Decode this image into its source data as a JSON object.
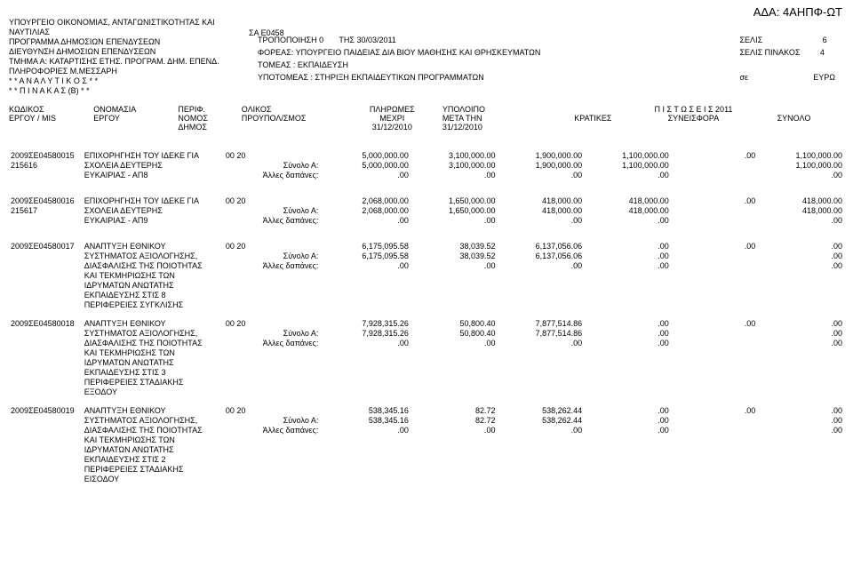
{
  "ada": "ΑΔΑ: 4ΑΗΠΦ-ΩΤ",
  "header": {
    "l1": "ΥΠΟΥΡΓΕΙΟ ΟΙΚΟΝΟΜΙΑΣ, ΑΝΤΑΓΩΝΙΣΤΙΚΟΤΗΤΑΣ ΚΑΙ ΝΑΥΤΙΛΙΑΣ",
    "l2": "ΠΡΟΓΡΑΜΜΑ ΔΗΜΟΣΙΩΝ ΕΠΕΝΔΥΣΕΩΝ",
    "l3": "ΔΙΕΥΘΥΝΣΗ ΔΗΜΟΣΙΩΝ ΕΠΕΝΔΥΣΕΩΝ",
    "l4": "ΤΜΗΜΑ  Α: ΚΑΤΑΡΤΙΣΗΣ ΕΤΗΣ. ΠΡΟΓΡΑΜ. ΔΗΜ. ΕΠΕΝΔ.",
    "l5": "ΠΛΗΡΟΦΟΡΙΕΣ  Μ.ΜΕΣΣΑΡΗ",
    "l6": "* *  Α Ν Α Λ Υ Τ Ι Κ Ο Σ  * *",
    "l7": "* *  Π Ι Ν Α Κ Α Σ  (Β)  * *",
    "sa": "ΣΑ  Ε0458",
    "tropo": "ΤΡΟΠΟΠΟΙΗΣΗ  0",
    "ths": "ΤΗΣ  30/03/2011",
    "foreas": "ΦΟΡΕΑΣ: ΥΠΟΥΡΓΕΙΟ  ΠΑΙΔΕΙΑΣ ΔΙΑ ΒΙΟΥ ΜΑΘΗΣΗΣ ΚΑΙ ΘΡΗΣΚΕΥΜΑΤΩΝ",
    "tomeas": "ΤΟΜΕΑΣ : ΕΚΠΑΙΔΕΥΣΗ",
    "ypotomeas": "ΥΠΟΤΟΜΕΑΣ :   ΣΤΗΡΙΞΗ ΕΚΠΑΙΔΕΥΤΙΚΩΝ ΠΡΟΓΡΑΜΜΑΤΩΝ",
    "selis": "ΣΕΛΙΣ",
    "selis_no": "6",
    "selis_pinakos": "ΣΕΛΙΣ ΠΙΝΑΚΟΣ",
    "selis_pinakos_no": "4",
    "se": "σε",
    "curr": "ΕΥΡΩ"
  },
  "cols": {
    "c1a": "ΚΩΔΙΚΟΣ",
    "c1b": "ΕΡΓΟΥ / MIS",
    "c2a": "ΟΝΟΜΑΣΙΑ",
    "c2b": "ΕΡΓΟΥ",
    "c3a": "ΠΕΡΙΦ.",
    "c3b": "ΝΟΜΟΣ",
    "c3c": "ΔΗΜΟΣ",
    "c4a": "ΟΛΙΚΟΣ",
    "c4b": "ΠΡΟΥΠΟΛ/ΣΜΟΣ",
    "c5a": "ΠΛΗΡΩΜΕΣ",
    "c5b": "ΜΕΧΡΙ",
    "c5c": "31/12/2010",
    "c6a": "ΥΠΟΛΟΙΠΟ",
    "c6b": "ΜΕΤΑ ΤΗΝ",
    "c6c": "31/12/2010",
    "c7": "Π Ι Σ Τ Ω Σ Ε Ι Σ   2011",
    "c7a": "ΚΡΑΤΙΚΕΣ",
    "c7b": "ΣΥΝΕΙΣΦΟΡΑ",
    "c7c": "ΣΥΝΟΛΟ"
  },
  "labels": {
    "synoloA": "Σύνολο Α:",
    "alles": "Άλλες δαπάνες:"
  },
  "rows": [
    {
      "code": "2009ΣΕ04580015",
      "mis": "215616",
      "name1": "ΕΠΙΧΟΡΗΓΗΣΗ ΤΟΥ ΙΔΕΚΕ ΓΙΑ",
      "name2": "ΣΧΟΛΕΙΑ ΔΕΥΤΕΡΗΣ",
      "name3": "ΕΥΚΑΙΡΙΑΣ - ΑΠ8",
      "name4": "",
      "name5": "",
      "name6": "",
      "name7": "",
      "name8": "",
      "perif": "00 20",
      "c4_1": "5,000,000.00",
      "c4_2": "5,000,000.00",
      "c4_3": ".00",
      "c5_1": "3,100,000.00",
      "c5_2": "3,100,000.00",
      "c5_3": ".00",
      "c6_1": "1,900,000.00",
      "c6_2": "1,900,000.00",
      "c6_3": ".00",
      "c7_1": "1,100,000.00",
      "c7_2": "1,100,000.00",
      "c7_3": ".00",
      "c8_1": ".00",
      "c8_2": "",
      "c8_3": "",
      "c9_1": "1,100,000.00",
      "c9_2": "1,100,000.00",
      "c9_3": ".00"
    },
    {
      "code": "2009ΣΕ04580016",
      "mis": "215617",
      "name1": "ΕΠΙΧΟΡΗΓΗΣΗ ΤΟΥ ΙΔΕΚΕ ΓΙΑ",
      "name2": "ΣΧΟΛΕΙΑ ΔΕΥΤΕΡΗΣ",
      "name3": "ΕΥΚΑΙΡΙΑΣ - ΑΠ9",
      "name4": "",
      "name5": "",
      "name6": "",
      "name7": "",
      "name8": "",
      "perif": "00 20",
      "c4_1": "2,068,000.00",
      "c4_2": "2,068,000.00",
      "c4_3": ".00",
      "c5_1": "1,650,000.00",
      "c5_2": "1,650,000.00",
      "c5_3": ".00",
      "c6_1": "418,000.00",
      "c6_2": "418,000.00",
      "c6_3": ".00",
      "c7_1": "418,000.00",
      "c7_2": "418,000.00",
      "c7_3": ".00",
      "c8_1": ".00",
      "c8_2": "",
      "c8_3": "",
      "c9_1": "418,000.00",
      "c9_2": "418,000.00",
      "c9_3": ".00"
    },
    {
      "code": "2009ΣΕ04580017",
      "mis": "",
      "name1": "ΑΝΑΠΤΥΞΗ ΕΘΝΙΚΟΥ",
      "name2": "ΣΥΣΤΗΜΑΤΟΣ ΑΞΙΟΛΟΓΗΣΗΣ,",
      "name3": "ΔΙΑΣΦΑΛΙΣΗΣ ΤΗΣ ΠΟΙΟΤΗΤΑΣ",
      "name4": "ΚΑΙ ΤΕΚΜΗΡΙΩΣΗΣ ΤΩΝ",
      "name5": "ΙΔΡΥΜΑΤΩΝ ΑΝΩΤΑΤΗΣ",
      "name6": "ΕΚΠΑΙΔΕΥΣΗΣ ΣΤΙΣ 8",
      "name7": "ΠΕΡΙΦΕΡΕΙΕΣ ΣΥΓΚΛΙΣΗΣ",
      "name8": "",
      "perif": "00 20",
      "c4_1": "6,175,095.58",
      "c4_2": "6,175,095.58",
      "c4_3": ".00",
      "c5_1": "38,039.52",
      "c5_2": "38,039.52",
      "c5_3": ".00",
      "c6_1": "6,137,056.06",
      "c6_2": "6,137,056.06",
      "c6_3": ".00",
      "c7_1": ".00",
      "c7_2": ".00",
      "c7_3": ".00",
      "c8_1": ".00",
      "c8_2": "",
      "c8_3": "",
      "c9_1": ".00",
      "c9_2": ".00",
      "c9_3": ".00"
    },
    {
      "code": "2009ΣΕ04580018",
      "mis": "",
      "name1": "ΑΝΑΠΤΥΞΗ ΕΘΝΙΚΟΥ",
      "name2": "ΣΥΣΤΗΜΑΤΟΣ ΑΞΙΟΛΟΓΗΣΗΣ,",
      "name3": "ΔΙΑΣΦΑΛΙΣΗΣ ΤΗΣ ΠΟΙΟΤΗΤΑΣ",
      "name4": "ΚΑΙ ΤΕΚΜΗΡΙΩΣΗΣ ΤΩΝ",
      "name5": "ΙΔΡΥΜΑΤΩΝ ΑΝΩΤΑΤΗΣ",
      "name6": "ΕΚΠΑΙΔΕΥΣΗΣ ΣΤΙΣ 3",
      "name7": "ΠΕΡΙΦΕΡΕΙΕΣ ΣΤΑΔΙΑΚΗΣ",
      "name8": "ΕΞΟΔΟΥ",
      "perif": "00 20",
      "c4_1": "7,928,315.26",
      "c4_2": "7,928,315.26",
      "c4_3": ".00",
      "c5_1": "50,800.40",
      "c5_2": "50,800.40",
      "c5_3": ".00",
      "c6_1": "7,877,514.86",
      "c6_2": "7,877,514.86",
      "c6_3": ".00",
      "c7_1": ".00",
      "c7_2": ".00",
      "c7_3": ".00",
      "c8_1": ".00",
      "c8_2": "",
      "c8_3": "",
      "c9_1": ".00",
      "c9_2": ".00",
      "c9_3": ".00"
    },
    {
      "code": "2009ΣΕ04580019",
      "mis": "",
      "name1": "ΑΝΑΠΤΥΞΗ ΕΘΝΙΚΟΥ",
      "name2": "ΣΥΣΤΗΜΑΤΟΣ ΑΞΙΟΛΟΓΗΣΗΣ,",
      "name3": "ΔΙΑΣΦΑΛΙΣΗΣ ΤΗΣ ΠΟΙΟΤΗΤΑΣ",
      "name4": "ΚΑΙ ΤΕΚΜΗΡΙΩΣΗΣ ΤΩΝ",
      "name5": "ΙΔΡΥΜΑΤΩΝ ΑΝΩΤΑΤΗΣ",
      "name6": "ΕΚΠΑΙΔΕΥΣΗΣ ΣΤΙΣ 2",
      "name7": "ΠΕΡΙΦΕΡΕΙΕΣ ΣΤΑΔΙΑΚΗΣ",
      "name8": "ΕΙΣΟΔΟΥ",
      "perif": "00 20",
      "c4_1": "538,345.16",
      "c4_2": "538,345.16",
      "c4_3": ".00",
      "c5_1": "82.72",
      "c5_2": "82.72",
      "c5_3": ".00",
      "c6_1": "538,262.44",
      "c6_2": "538,262.44",
      "c6_3": ".00",
      "c7_1": ".00",
      "c7_2": ".00",
      "c7_3": ".00",
      "c8_1": ".00",
      "c8_2": "",
      "c8_3": "",
      "c9_1": ".00",
      "c9_2": ".00",
      "c9_3": ".00"
    }
  ]
}
